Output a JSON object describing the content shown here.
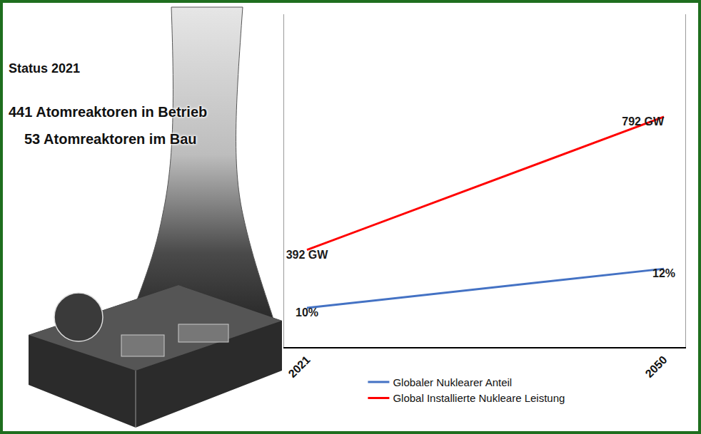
{
  "chart_data": {
    "type": "line",
    "annotations": [
      "Status 2021",
      "441 Atomreaktoren in Betrieb",
      "53 Atomreaktoren im Bau"
    ],
    "categories": [
      "2021",
      "2050"
    ],
    "series": [
      {
        "name": "Globaler Nuklearer Anteil",
        "color": "#4472c4",
        "axis": "y2",
        "values": [
          10,
          12
        ],
        "value_labels": [
          "10%",
          "12%"
        ]
      },
      {
        "name": "Global Installierte Nukleare Leistung",
        "color": "#ff0000",
        "values": [
          392,
          792
        ],
        "value_labels": [
          "392 GW",
          "792 GW"
        ]
      }
    ],
    "ylim": [
      100,
      1100
    ],
    "y2lim": [
      8,
      25
    ],
    "data_labels": true,
    "tick_labels": "x",
    "legend": "bottom",
    "grid": false
  }
}
